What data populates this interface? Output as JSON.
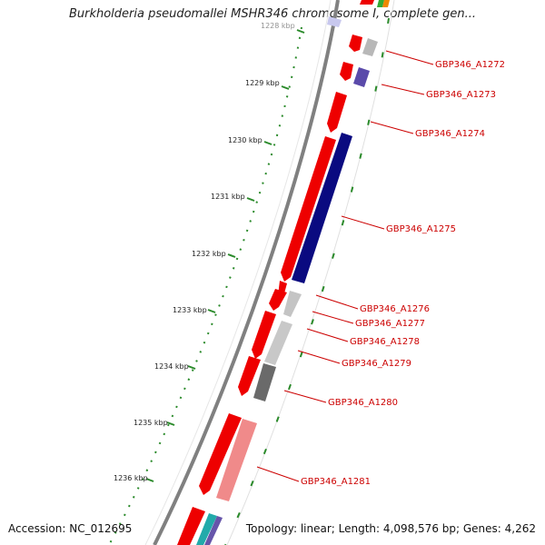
{
  "header": {
    "title": "Burkholderia pseudomallei MSHR346 chromosome I, complete gen..."
  },
  "footer": {
    "accession": "Accession: NC_012695",
    "summary": "Topology: linear; Length: 4,098,576 bp; Genes: 4,262"
  },
  "colors": {
    "backbone": "#808080",
    "tick": "#2a8a2a",
    "forward_gene": "#ee0000",
    "label": "#cc0000"
  },
  "scale": {
    "unit": "kbp",
    "ticks": [
      {
        "label": "1228 kbp",
        "value": 1228
      },
      {
        "label": "1229 kbp",
        "value": 1229
      },
      {
        "label": "1230 kbp",
        "value": 1230
      },
      {
        "label": "1231 kbp",
        "value": 1231
      },
      {
        "label": "1232 kbp",
        "value": 1232
      },
      {
        "label": "1233 kbp",
        "value": 1233
      },
      {
        "label": "1234 kbp",
        "value": 1234
      },
      {
        "label": "1235 kbp",
        "value": 1235
      },
      {
        "label": "1236 kbp",
        "value": 1236
      }
    ]
  },
  "genes": [
    {
      "label": "GBP346_A1272"
    },
    {
      "label": "GBP346_A1273"
    },
    {
      "label": "GBP346_A1274"
    },
    {
      "label": "GBP346_A1275"
    },
    {
      "label": "GBP346_A1276"
    },
    {
      "label": "GBP346_A1277"
    },
    {
      "label": "GBP346_A1278"
    },
    {
      "label": "GBP346_A1279"
    },
    {
      "label": "GBP346_A1280"
    },
    {
      "label": "GBP346_A1281"
    }
  ]
}
